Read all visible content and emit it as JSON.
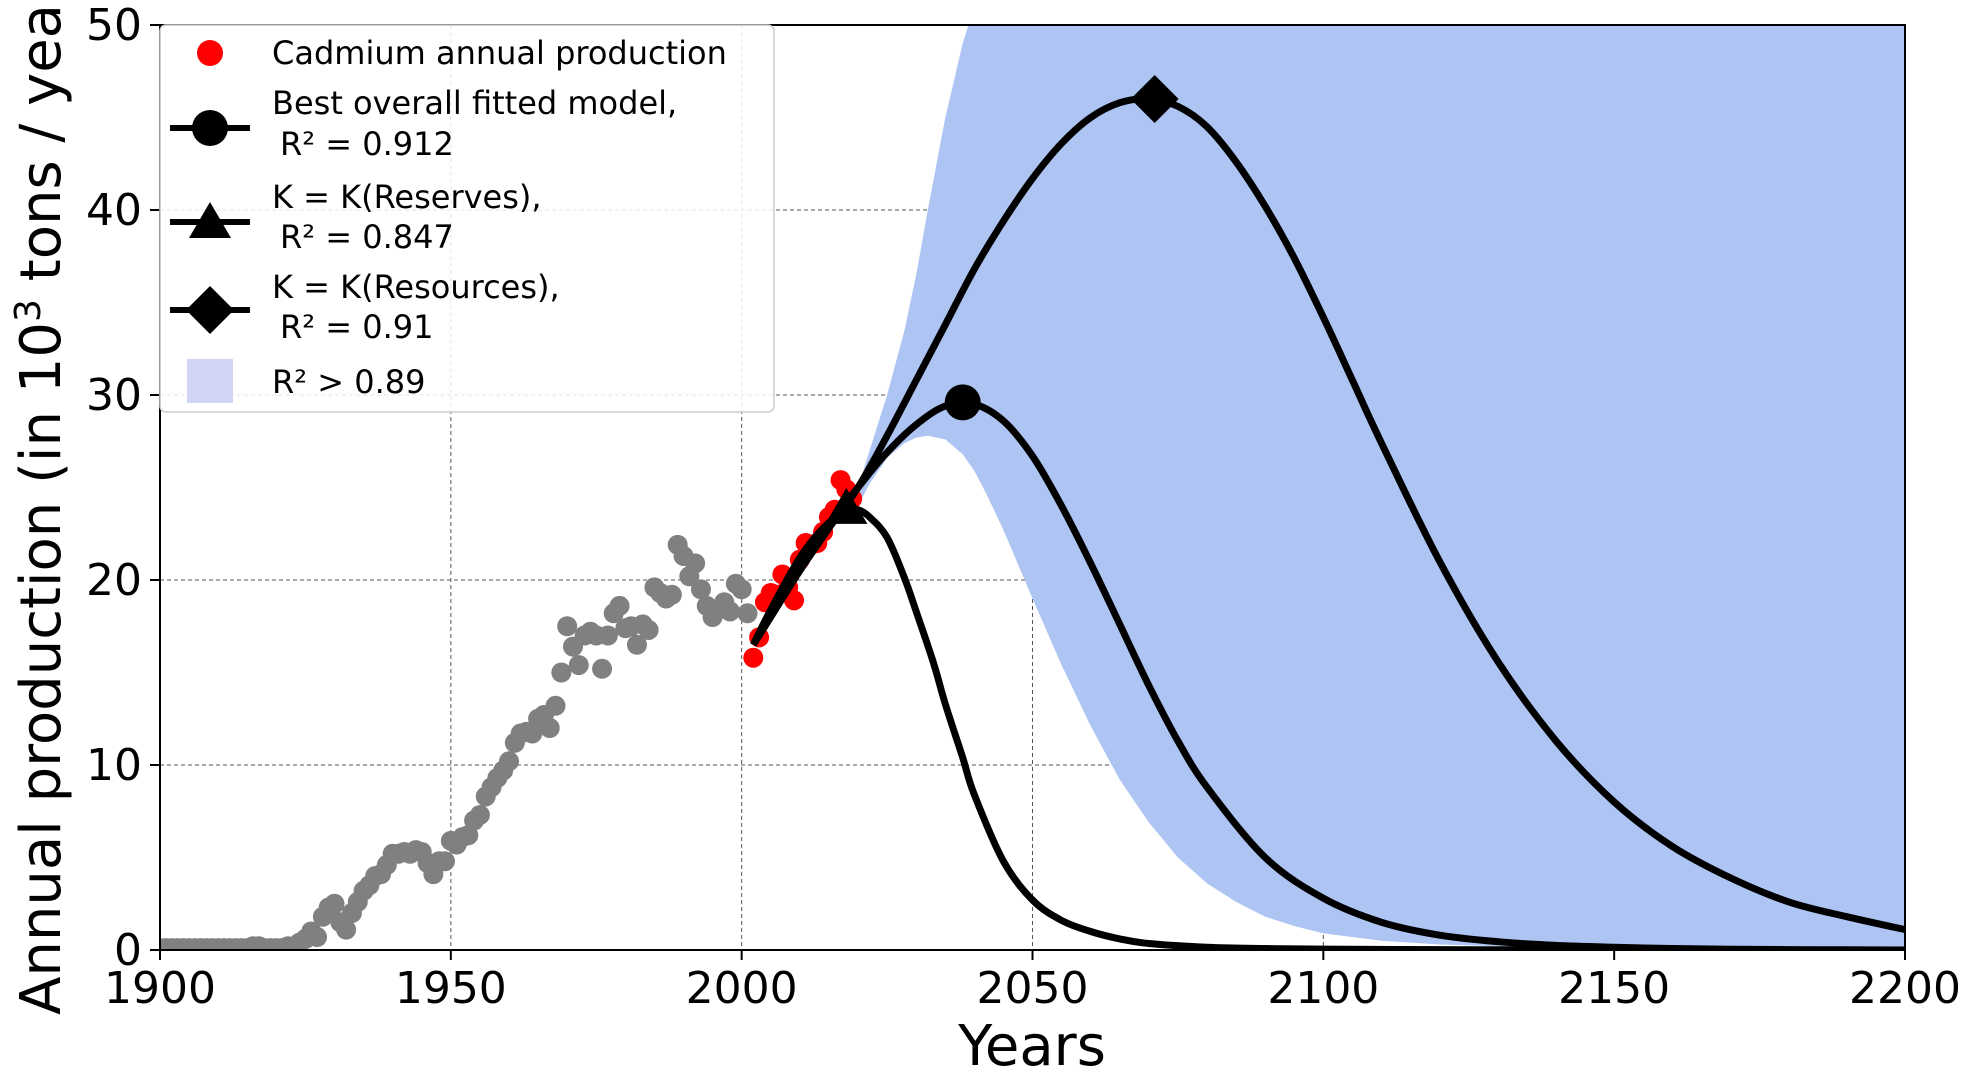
{
  "chart_data": {
    "type": "line",
    "title": "",
    "xlabel": "Years",
    "ylabel_prefix": "Annual production (in 10",
    "ylabel_exp": "3",
    "ylabel_suffix": " tons / year)",
    "xlim": [
      1900,
      2200
    ],
    "ylim": [
      0,
      50
    ],
    "xticks": [
      1900,
      1950,
      2000,
      2050,
      2100,
      2150,
      2200
    ],
    "yticks": [
      0,
      10,
      20,
      30,
      40,
      50
    ],
    "grid": true,
    "legend_position": "top-left",
    "colors": {
      "band": "#aec5f4",
      "legend_band": "#d0d4f7",
      "history": "#808080",
      "recent": "#ff0000",
      "model": "#000000"
    },
    "history_series": {
      "name": "historical production",
      "x": [
        1900,
        1901,
        1902,
        1903,
        1904,
        1905,
        1906,
        1907,
        1908,
        1909,
        1910,
        1911,
        1912,
        1913,
        1914,
        1915,
        1916,
        1917,
        1918,
        1919,
        1920,
        1921,
        1922,
        1923,
        1924,
        1925,
        1926,
        1927,
        1928,
        1929,
        1930,
        1931,
        1932,
        1933,
        1934,
        1935,
        1936,
        1937,
        1938,
        1939,
        1940,
        1941,
        1942,
        1943,
        1944,
        1945,
        1946,
        1947,
        1948,
        1949,
        1950,
        1951,
        1952,
        1953,
        1954,
        1955,
        1956,
        1957,
        1958,
        1959,
        1960,
        1961,
        1962,
        1963,
        1964,
        1965,
        1966,
        1967,
        1968,
        1969,
        1970,
        1971,
        1972,
        1973,
        1974,
        1975,
        1976,
        1977,
        1978,
        1979,
        1980,
        1981,
        1982,
        1983,
        1984,
        1985,
        1986,
        1987,
        1988,
        1989,
        1990,
        1991,
        1992,
        1993,
        1994,
        1995,
        1996,
        1997,
        1998,
        1999,
        2000,
        2001
      ],
      "y": [
        0.1,
        0.1,
        0.1,
        0.1,
        0.1,
        0.1,
        0.1,
        0.1,
        0.1,
        0.1,
        0.1,
        0.1,
        0.1,
        0.1,
        0.1,
        0.1,
        0.2,
        0.2,
        0.1,
        0.1,
        0.1,
        0.1,
        0.2,
        0.2,
        0.4,
        0.6,
        1.0,
        0.7,
        1.8,
        2.3,
        2.5,
        1.5,
        1.1,
        2.0,
        2.6,
        3.2,
        3.5,
        4.0,
        4.1,
        4.6,
        5.2,
        5.2,
        5.3,
        5.2,
        5.4,
        5.3,
        4.7,
        4.1,
        4.8,
        4.8,
        5.9,
        5.7,
        6.1,
        6.2,
        7.0,
        7.3,
        8.3,
        8.8,
        9.3,
        9.7,
        10.2,
        11.2,
        11.7,
        11.8,
        11.7,
        12.5,
        12.7,
        12.0,
        13.2,
        15.0,
        17.5,
        16.4,
        15.4,
        17.0,
        17.2,
        17.0,
        15.2,
        17.0,
        18.2,
        18.6,
        17.4,
        17.5,
        16.5,
        17.6,
        17.3,
        19.6,
        19.3,
        19.0,
        19.2,
        21.9,
        21.3,
        20.2,
        20.9,
        19.5,
        18.6,
        18.0,
        18.4,
        18.8,
        18.3,
        19.8,
        19.5,
        18.2
      ]
    },
    "recent_series": {
      "name": "Cadmium annual production",
      "x": [
        2002,
        2003,
        2004,
        2005,
        2006,
        2007,
        2008,
        2009,
        2010,
        2011,
        2012,
        2013,
        2014,
        2015,
        2016,
        2017,
        2018,
        2019
      ],
      "y": [
        15.8,
        16.9,
        18.8,
        19.3,
        19.2,
        20.3,
        19.6,
        18.9,
        21.1,
        22.0,
        21.9,
        22.0,
        22.6,
        23.4,
        23.8,
        25.4,
        24.9,
        24.4
      ]
    },
    "curves": [
      {
        "name": "Best overall fitted model",
        "r2_text": "R² = 0.912",
        "peak": {
          "x": 2038,
          "y": 29.6
        },
        "marker": "circle",
        "x": [
          2002,
          2005,
          2010,
          2015,
          2020,
          2025,
          2030,
          2035,
          2040,
          2045,
          2050,
          2055,
          2060,
          2065,
          2070,
          2075,
          2080,
          2090,
          2100,
          2110,
          2120,
          2130,
          2140,
          2150,
          2160,
          2170,
          2180,
          2190,
          2200
        ],
        "y": [
          16.5,
          18.3,
          20.8,
          23.0,
          25.0,
          26.9,
          28.4,
          29.4,
          29.5,
          28.6,
          26.7,
          24.0,
          20.9,
          17.6,
          14.3,
          11.3,
          8.8,
          5.0,
          2.8,
          1.5,
          0.8,
          0.45,
          0.25,
          0.15,
          0.08,
          0.04,
          0.02,
          0.01,
          0.0
        ]
      },
      {
        "name": "K = K(Reserves)",
        "r2_text": "R² = 0.847",
        "peak": {
          "x": 2018,
          "y": 23.9
        },
        "marker": "triangle",
        "x": [
          2002,
          2005,
          2010,
          2014,
          2018,
          2020,
          2022,
          2025,
          2028,
          2030,
          2033,
          2035,
          2038,
          2040,
          2045,
          2050,
          2055,
          2060,
          2065,
          2070,
          2080,
          2090,
          2100,
          2120,
          2140,
          2170,
          2200
        ],
        "y": [
          16.5,
          18.4,
          21.2,
          22.8,
          23.8,
          23.8,
          23.4,
          22.3,
          20.1,
          18.3,
          15.5,
          13.3,
          10.4,
          8.4,
          4.8,
          2.7,
          1.6,
          1.0,
          0.6,
          0.35,
          0.15,
          0.08,
          0.05,
          0.02,
          0.01,
          0.0,
          0.0
        ]
      },
      {
        "name": "K = K(Resources)",
        "r2_text": "R² = 0.91",
        "peak": {
          "x": 2071,
          "y": 46.0
        },
        "marker": "diamond",
        "x": [
          2002,
          2005,
          2010,
          2015,
          2020,
          2025,
          2030,
          2035,
          2040,
          2045,
          2050,
          2055,
          2060,
          2065,
          2070,
          2075,
          2080,
          2085,
          2090,
          2095,
          2100,
          2105,
          2110,
          2120,
          2130,
          2140,
          2150,
          2160,
          2170,
          2180,
          2190,
          2200
        ],
        "y": [
          16.5,
          18.0,
          20.5,
          22.8,
          25.0,
          27.8,
          30.8,
          33.8,
          36.8,
          39.4,
          41.7,
          43.6,
          45.0,
          45.8,
          46.0,
          45.6,
          44.5,
          42.6,
          40.2,
          37.4,
          34.2,
          30.8,
          27.4,
          21.0,
          15.6,
          11.3,
          8.0,
          5.6,
          3.9,
          2.6,
          1.8,
          1.1
        ]
      }
    ],
    "band": {
      "label": "R² > 0.89",
      "x": [
        2020,
        2022,
        2025,
        2028,
        2030,
        2032,
        2035,
        2038,
        2040,
        2042,
        2045,
        2050,
        2055,
        2060,
        2065,
        2070,
        2075,
        2080,
        2085,
        2090,
        2095,
        2100,
        2110,
        2120,
        2130,
        2140,
        2150,
        2160,
        2180,
        2200
      ],
      "lower": [
        24.0,
        25.2,
        26.6,
        27.4,
        27.7,
        27.8,
        27.6,
        26.8,
        25.9,
        24.7,
        22.7,
        19.0,
        15.4,
        12.1,
        9.2,
        6.9,
        5.0,
        3.6,
        2.6,
        1.8,
        1.3,
        0.9,
        0.5,
        0.3,
        0.2,
        0.1,
        0.05,
        0.03,
        0.01,
        0.0
      ],
      "upper": [
        25.0,
        27.0,
        30.0,
        33.5,
        36.5,
        40.0,
        45.0,
        49.0,
        51,
        51,
        51,
        51,
        51,
        51,
        51,
        51,
        51,
        51,
        51,
        51,
        51,
        51,
        51,
        51,
        51,
        51,
        51,
        51,
        51,
        51
      ]
    },
    "legend": [
      {
        "marker": "red-dot",
        "line1": "Cadmium annual production",
        "line2": ""
      },
      {
        "marker": "circle",
        "line1": "Best overall fitted model,",
        "line2": "R² = 0.912"
      },
      {
        "marker": "triangle",
        "line1": "K = K(Reserves),",
        "line2": "R² = 0.847"
      },
      {
        "marker": "diamond",
        "line1": "K = K(Resources),",
        "line2": "R² = 0.91"
      },
      {
        "marker": "band",
        "line1": "R² > 0.89",
        "line2": ""
      }
    ]
  }
}
